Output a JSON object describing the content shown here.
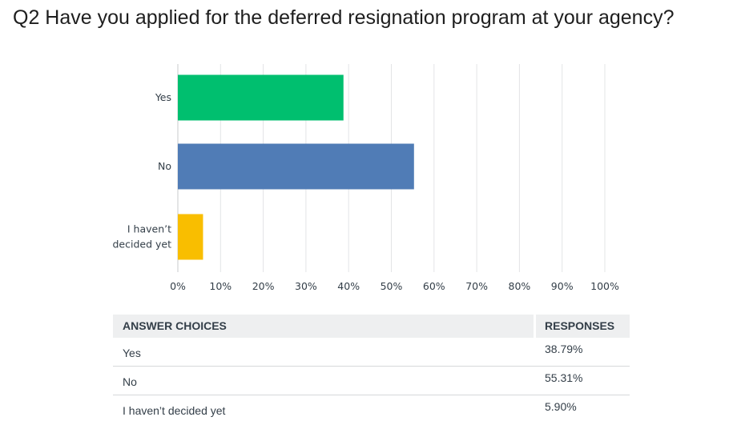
{
  "title": "Q2 Have you applied for the deferred resignation program at your agency?",
  "colors": {
    "yes": "#00bf6f",
    "no": "#507cb6",
    "undecided": "#f9be00",
    "grid": "#e3e4e6"
  },
  "chart_data": {
    "type": "bar",
    "orientation": "horizontal",
    "categories": [
      "Yes",
      "No",
      "I haven’t decided yet"
    ],
    "category_label_lines": [
      [
        "Yes"
      ],
      [
        "No"
      ],
      [
        "I haven’t",
        "decided yet"
      ]
    ],
    "values": [
      38.79,
      55.31,
      5.9
    ],
    "xlim": [
      0,
      100
    ],
    "xticks": [
      "0%",
      "10%",
      "20%",
      "30%",
      "40%",
      "50%",
      "60%",
      "70%",
      "80%",
      "90%",
      "100%"
    ],
    "grid": true
  },
  "table": {
    "headers": {
      "choice": "ANSWER CHOICES",
      "responses": "RESPONSES"
    },
    "rows": [
      {
        "choice": "Yes",
        "response": "38.79%"
      },
      {
        "choice": "No",
        "response": "55.31%"
      },
      {
        "choice": "I haven’t decided yet",
        "response": "5.90%"
      }
    ]
  }
}
